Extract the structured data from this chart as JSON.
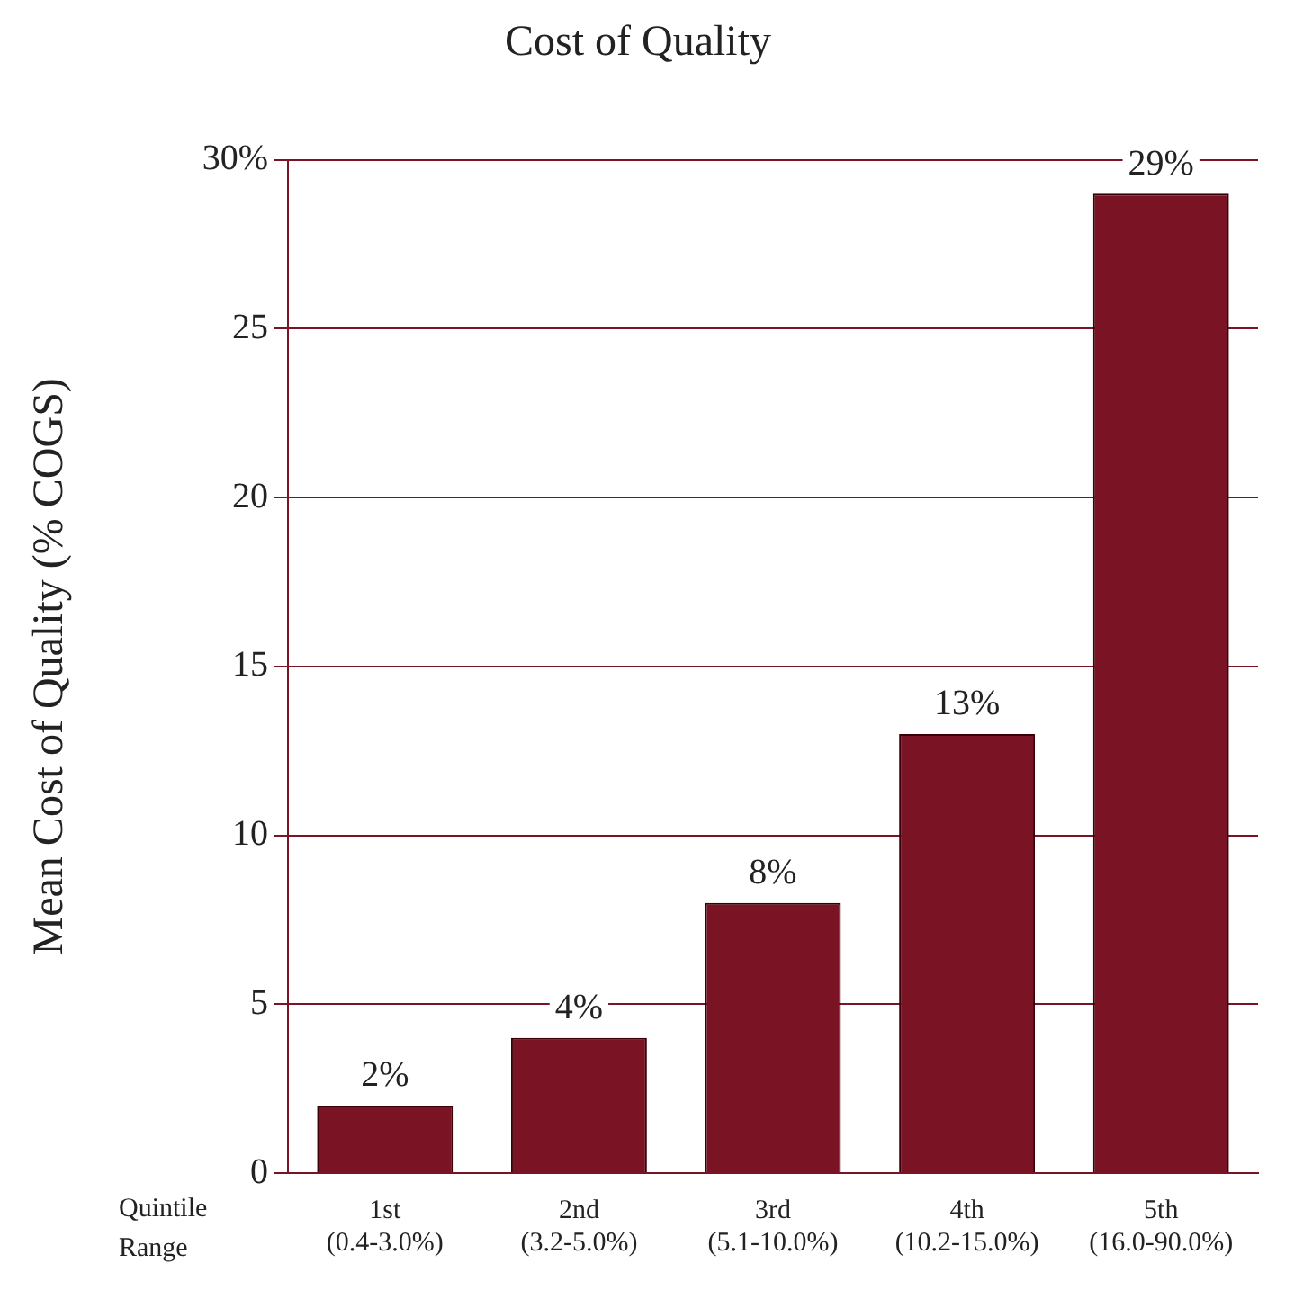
{
  "chart_data": {
    "type": "bar",
    "title": "Cost of Quality",
    "ylabel": "Mean Cost of Quality (% COGS)",
    "categories": [
      "1st\n(0.4-3.0%)",
      "2nd\n(3.2-5.0%)",
      "3rd\n(5.1-10.0%)",
      "4th\n(10.2-15.0%)",
      "5th\n(16.0-90.0%)"
    ],
    "values": [
      2,
      4,
      8,
      13,
      29
    ],
    "value_labels": [
      "2%",
      "4%",
      "8%",
      "13%",
      "29%"
    ],
    "color": "#7a1424",
    "ylim": [
      0,
      30
    ],
    "yticks": [
      0,
      5,
      10,
      15,
      20,
      25,
      {
        "value": 30,
        "label": "30%"
      }
    ],
    "grid": "y",
    "annotations": [
      "Quintile",
      "Range"
    ]
  }
}
